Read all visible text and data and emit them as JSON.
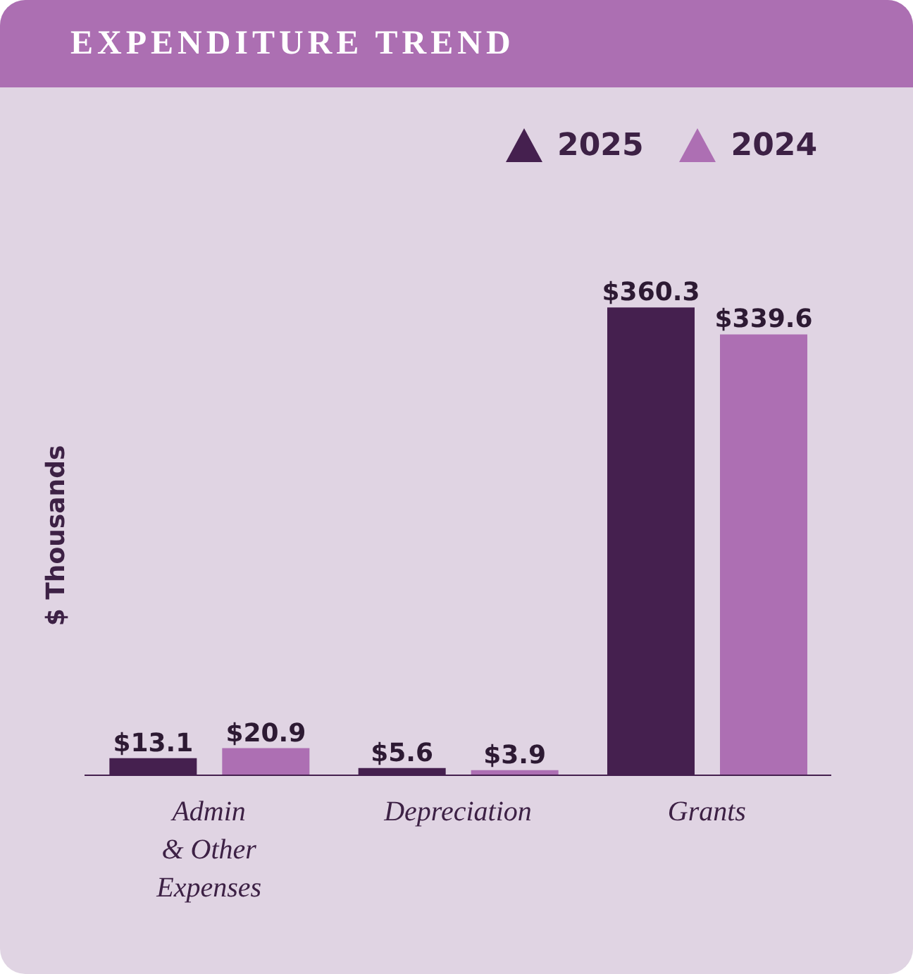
{
  "chart_data": {
    "type": "bar",
    "title": "EXPENDITURE TREND",
    "ylabel": "$ Thousands",
    "categories": [
      "Admin & Other Expenses",
      "Depreciation",
      "Grants"
    ],
    "series": [
      {
        "name": "2025",
        "color": "#45204f",
        "values": [
          13.1,
          5.6,
          360.3
        ],
        "value_labels": [
          "$13.1",
          "$5.6",
          "$360.3"
        ]
      },
      {
        "name": "2024",
        "color": "#ad6fb3",
        "values": [
          20.9,
          3.9,
          339.6
        ],
        "value_labels": [
          "$20.9",
          "$3.9",
          "$339.6"
        ]
      }
    ],
    "legend": "top right",
    "marker": "triangle"
  }
}
